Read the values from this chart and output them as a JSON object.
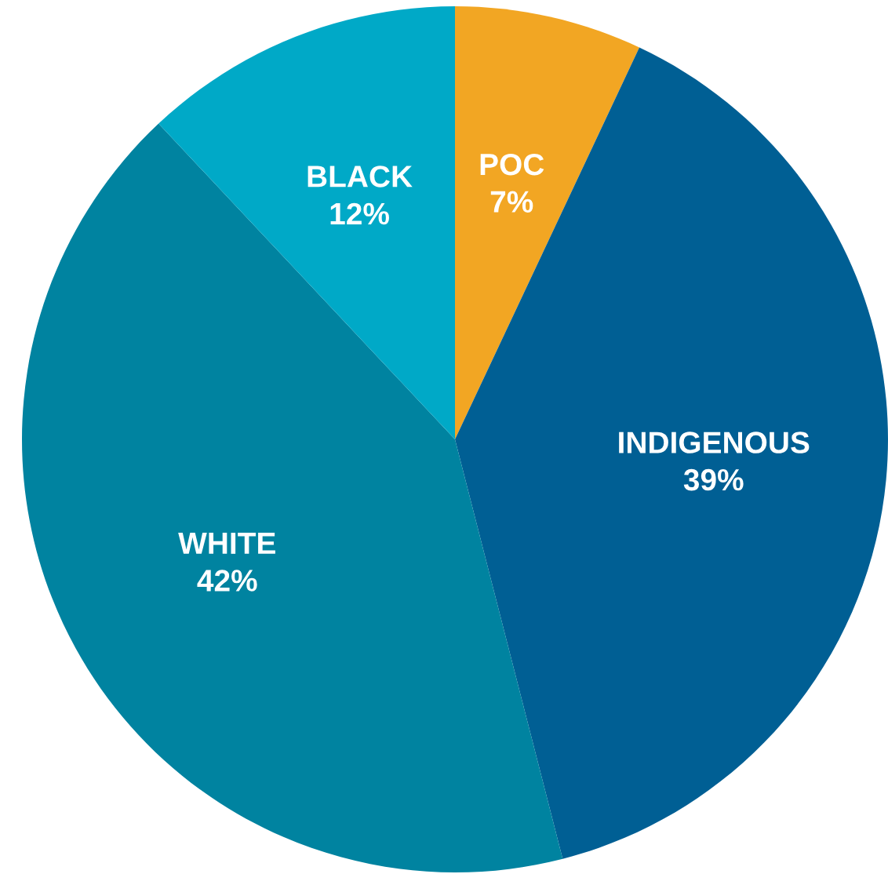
{
  "chart_data": {
    "type": "pie",
    "categories": [
      "POC",
      "INDIGENOUS",
      "WHITE",
      "BLACK"
    ],
    "values": [
      7,
      39,
      42,
      12
    ],
    "value_labels": [
      "7%",
      "39%",
      "42%",
      "12%"
    ],
    "colors": [
      "#f2a623",
      "#005f94",
      "#0083a0",
      "#00a9c7"
    ]
  }
}
